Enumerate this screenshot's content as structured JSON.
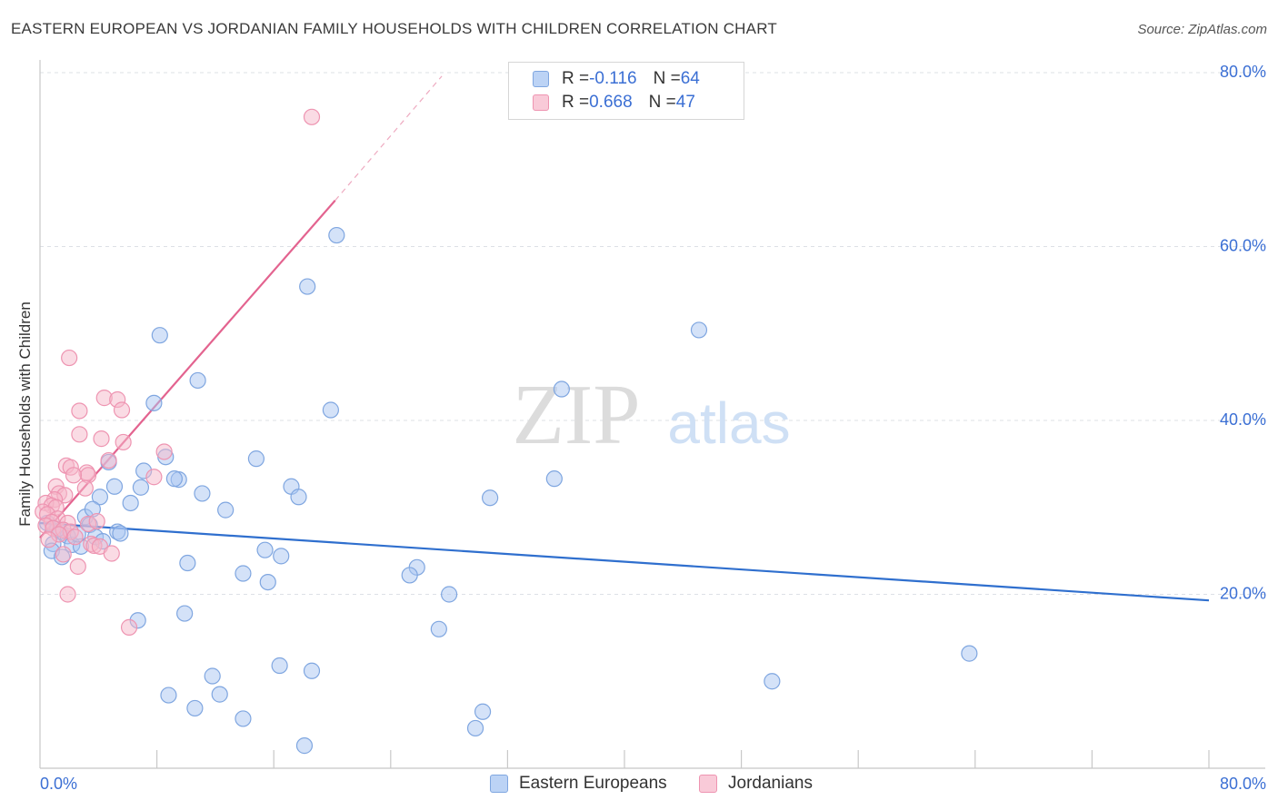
{
  "header": {
    "title": "EASTERN EUROPEAN VS JORDANIAN FAMILY HOUSEHOLDS WITH CHILDREN CORRELATION CHART",
    "source": "Source: ZipAtlas.com"
  },
  "watermark": {
    "zip": "ZIP",
    "atlas": "atlas"
  },
  "legend_top": [
    {
      "r_label": "R = ",
      "r_value": "-0.116",
      "n_label": "N = ",
      "n_value": "64"
    },
    {
      "r_label": "R = ",
      "r_value": "0.668",
      "n_label": "N = ",
      "n_value": "47"
    }
  ],
  "legend_bottom": [
    "Eastern Europeans",
    "Jordanians"
  ],
  "colors": {
    "blue_fill": "#a9c6f2",
    "blue_stroke": "#7fa6e0",
    "blue_line": "#2f6fce",
    "pink_fill": "#f6b7ca",
    "pink_stroke": "#ee94b1",
    "pink_line": "#e3638f",
    "tick_label": "#3b6fd4",
    "grid": "#dde0e6"
  },
  "chart_data": {
    "type": "scatter",
    "title": "EASTERN EUROPEAN VS JORDANIAN FAMILY HOUSEHOLDS WITH CHILDREN CORRELATION CHART",
    "xlabel": "",
    "ylabel": "Family Households with Children",
    "xlim": [
      0,
      80
    ],
    "ylim": [
      0,
      80
    ],
    "x_tick_labels": [
      "0.0%",
      "80.0%"
    ],
    "y_tick_values": [
      20,
      40,
      60,
      80
    ],
    "y_tick_labels": [
      "20.0%",
      "40.0%",
      "60.0%",
      "80.0%"
    ],
    "grid": "horizontal dashed",
    "series": [
      {
        "name": "Eastern Europeans",
        "r": -0.116,
        "n": 64,
        "trend": {
          "x": [
            0,
            80
          ],
          "y": [
            28.2,
            19.3
          ]
        },
        "points": [
          [
            20.3,
            61.3
          ],
          [
            18.3,
            55.4
          ],
          [
            8.2,
            49.8
          ],
          [
            45.1,
            50.4
          ],
          [
            10.8,
            44.6
          ],
          [
            35.7,
            43.6
          ],
          [
            7.8,
            42.0
          ],
          [
            19.9,
            41.2
          ],
          [
            8.6,
            35.8
          ],
          [
            14.8,
            35.6
          ],
          [
            7.1,
            34.2
          ],
          [
            4.7,
            35.2
          ],
          [
            9.5,
            33.2
          ],
          [
            9.2,
            33.3
          ],
          [
            17.2,
            32.4
          ],
          [
            5.1,
            32.4
          ],
          [
            6.9,
            32.3
          ],
          [
            11.1,
            31.6
          ],
          [
            4.1,
            31.2
          ],
          [
            17.7,
            31.2
          ],
          [
            30.8,
            31.1
          ],
          [
            6.2,
            30.5
          ],
          [
            12.7,
            29.7
          ],
          [
            35.2,
            33.3
          ],
          [
            3.1,
            28.9
          ],
          [
            0.5,
            28.2
          ],
          [
            3.4,
            28.0
          ],
          [
            1.4,
            27.2
          ],
          [
            5.3,
            27.2
          ],
          [
            5.5,
            27.0
          ],
          [
            1.9,
            26.7
          ],
          [
            3.8,
            26.6
          ],
          [
            4.3,
            26.1
          ],
          [
            0.9,
            25.8
          ],
          [
            2.2,
            25.7
          ],
          [
            2.8,
            25.5
          ],
          [
            0.8,
            25.0
          ],
          [
            1.5,
            24.3
          ],
          [
            15.4,
            25.1
          ],
          [
            16.5,
            24.4
          ],
          [
            10.1,
            23.6
          ],
          [
            25.8,
            23.1
          ],
          [
            13.9,
            22.4
          ],
          [
            25.3,
            22.2
          ],
          [
            15.6,
            21.4
          ],
          [
            28.0,
            20.0
          ],
          [
            6.7,
            17.0
          ],
          [
            9.9,
            17.8
          ],
          [
            27.3,
            16.0
          ],
          [
            63.6,
            13.2
          ],
          [
            16.4,
            11.8
          ],
          [
            18.6,
            11.2
          ],
          [
            11.8,
            10.6
          ],
          [
            50.1,
            10.0
          ],
          [
            8.8,
            8.4
          ],
          [
            12.3,
            8.5
          ],
          [
            10.6,
            6.9
          ],
          [
            30.3,
            6.5
          ],
          [
            13.9,
            5.7
          ],
          [
            29.8,
            4.6
          ],
          [
            18.1,
            2.6
          ],
          [
            1.2,
            27.5
          ],
          [
            3.6,
            29.8
          ],
          [
            2.6,
            26.9
          ]
        ]
      },
      {
        "name": "Jordanians",
        "r": 0.668,
        "n": 47,
        "trend": {
          "x": [
            0,
            20.2
          ],
          "y": [
            26.5,
            65.3
          ]
        },
        "trend_dashed": {
          "x": [
            20.2,
            27.5
          ],
          "y": [
            65.3,
            79.6
          ]
        },
        "points": [
          [
            18.6,
            74.9
          ],
          [
            2.0,
            47.2
          ],
          [
            4.4,
            42.6
          ],
          [
            5.3,
            42.4
          ],
          [
            2.7,
            41.1
          ],
          [
            5.6,
            41.2
          ],
          [
            2.7,
            38.4
          ],
          [
            4.2,
            37.9
          ],
          [
            5.7,
            37.5
          ],
          [
            8.5,
            36.4
          ],
          [
            4.7,
            35.4
          ],
          [
            1.8,
            34.8
          ],
          [
            2.1,
            34.6
          ],
          [
            3.2,
            34.0
          ],
          [
            3.3,
            33.7
          ],
          [
            2.3,
            33.7
          ],
          [
            7.8,
            33.5
          ],
          [
            1.1,
            32.4
          ],
          [
            3.1,
            32.2
          ],
          [
            1.3,
            31.6
          ],
          [
            1.7,
            31.4
          ],
          [
            1.0,
            30.9
          ],
          [
            0.4,
            30.5
          ],
          [
            0.8,
            30.2
          ],
          [
            1.1,
            30.0
          ],
          [
            0.2,
            29.5
          ],
          [
            0.5,
            29.2
          ],
          [
            1.2,
            28.7
          ],
          [
            0.8,
            28.3
          ],
          [
            1.9,
            28.2
          ],
          [
            3.3,
            28.1
          ],
          [
            3.9,
            28.4
          ],
          [
            0.4,
            27.9
          ],
          [
            0.9,
            27.6
          ],
          [
            1.6,
            27.4
          ],
          [
            2.1,
            27.2
          ],
          [
            1.3,
            26.9
          ],
          [
            2.4,
            26.6
          ],
          [
            0.6,
            26.3
          ],
          [
            3.5,
            25.8
          ],
          [
            3.7,
            25.6
          ],
          [
            4.1,
            25.5
          ],
          [
            1.6,
            24.6
          ],
          [
            4.9,
            24.7
          ],
          [
            2.6,
            23.2
          ],
          [
            1.9,
            20.0
          ],
          [
            6.1,
            16.2
          ]
        ]
      }
    ]
  }
}
